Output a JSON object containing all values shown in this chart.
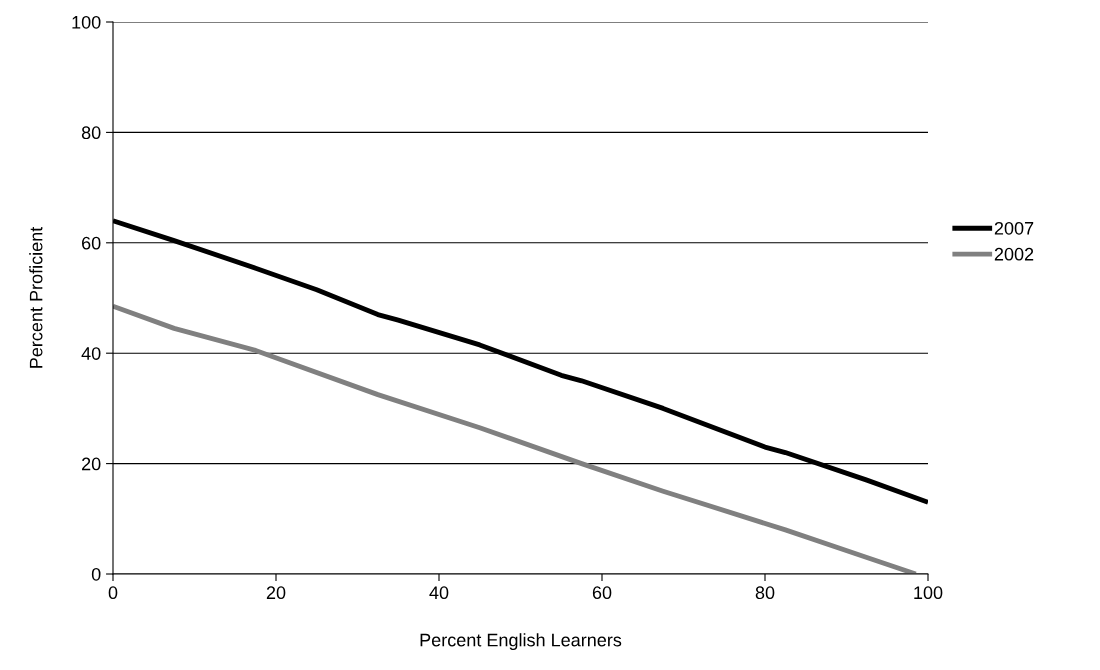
{
  "chart_data": {
    "type": "line",
    "xlabel": "Percent English Learners",
    "ylabel": "Percent Proficient",
    "xlim": [
      0,
      100
    ],
    "xticks": [
      0,
      20,
      40,
      60,
      80,
      100
    ],
    "ylim": [
      0,
      100
    ],
    "yticks": [
      0,
      20,
      40,
      60,
      80,
      100
    ],
    "grid": "y",
    "legend": "right",
    "line_style": "solid",
    "series": [
      {
        "name": "2007",
        "color": "#000000",
        "x": [
          0,
          7.5,
          17.5,
          25,
          32.5,
          35,
          45,
          55,
          57.5,
          67.5,
          80,
          82.5,
          92.5,
          100
        ],
        "values": [
          64,
          60.4,
          55.4,
          51.5,
          47,
          46,
          41.5,
          36,
          35,
          30,
          23,
          22,
          17,
          13
        ]
      },
      {
        "name": "2002",
        "color": "#808080",
        "x": [
          0,
          7.5,
          17.5,
          32.5,
          45,
          57.5,
          67.5,
          82.5,
          92.5,
          98.5
        ],
        "values": [
          48.5,
          44.5,
          40.5,
          32.5,
          26.5,
          20,
          15,
          8,
          3,
          0
        ]
      }
    ]
  }
}
